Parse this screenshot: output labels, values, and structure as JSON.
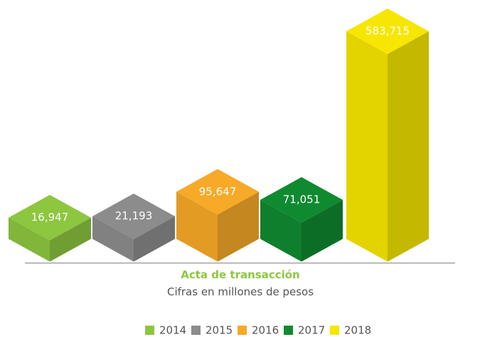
{
  "chart_data": {
    "type": "bar",
    "title": "Acta de transacción",
    "subtitle": "Cifras en millones de pesos",
    "categories": [
      "2014",
      "2015",
      "2016",
      "2017",
      "2018"
    ],
    "values": [
      16947,
      21193,
      95647,
      71051,
      583715
    ],
    "value_labels": [
      "16,947",
      "21,193",
      "95,647",
      "71,051",
      "583,715"
    ],
    "colors": [
      "#8dc63f",
      "#8c8c8c",
      "#f7a928",
      "#108a30",
      "#f7e600"
    ]
  }
}
